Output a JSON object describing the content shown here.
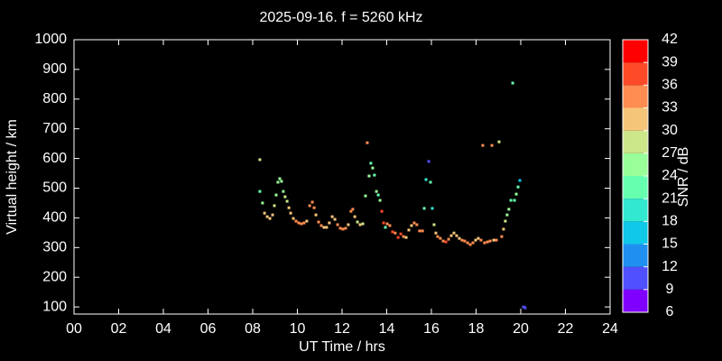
{
  "chart_data": {
    "type": "scatter",
    "title": "2025-09-16. f = 5260 kHz",
    "x_label": "UT Time / hrs",
    "y_label": "Virtual height / km",
    "colorbar_label": "SNR / dB",
    "xlim": [
      0,
      24
    ],
    "ylim": [
      76,
      1000
    ],
    "xticks": [
      {
        "value": 0,
        "label": "00"
      },
      {
        "value": 2,
        "label": "02"
      },
      {
        "value": 4,
        "label": "04"
      },
      {
        "value": 6,
        "label": "06"
      },
      {
        "value": 8,
        "label": "08"
      },
      10,
      12,
      14,
      16,
      18,
      20,
      22,
      24
    ],
    "yticks": [
      100,
      200,
      300,
      400,
      500,
      600,
      700,
      800,
      900,
      1000
    ],
    "colorbar_lim": [
      6,
      42
    ],
    "colorbar_ticks": [
      6,
      9,
      12,
      15,
      18,
      21,
      24,
      27,
      30,
      33,
      36,
      39,
      42
    ],
    "colors": [
      "#8000ff",
      "#5050ff",
      "#2090f0",
      "#10c8e8",
      "#33e8d0",
      "#66ffb0",
      "#99ff99",
      "#cce68a",
      "#f5c57a",
      "#ff8c50",
      "#ff4a28",
      "#ff0000"
    ],
    "x": [
      8.32,
      8.32,
      8.44,
      8.53,
      8.65,
      8.77,
      8.89,
      8.97,
      9.05,
      9.13,
      9.21,
      9.29,
      9.37,
      9.45,
      9.54,
      9.62,
      9.7,
      9.82,
      9.94,
      10.06,
      10.18,
      10.3,
      10.42,
      10.55,
      10.67,
      10.75,
      10.83,
      10.95,
      11.07,
      11.19,
      11.31,
      11.43,
      11.56,
      11.68,
      11.8,
      11.92,
      12.04,
      12.16,
      12.28,
      12.4,
      12.48,
      12.57,
      12.69,
      12.81,
      12.93,
      13.05,
      13.13,
      13.21,
      13.29,
      13.37,
      13.45,
      13.54,
      13.62,
      13.7,
      13.78,
      13.86,
      13.94,
      14.02,
      14.14,
      14.26,
      14.38,
      14.51,
      14.63,
      14.75,
      14.87,
      14.99,
      15.11,
      15.23,
      15.35,
      15.47,
      15.6,
      15.68,
      15.76,
      15.88,
      15.96,
      16.04,
      16.12,
      16.2,
      16.28,
      16.4,
      16.53,
      16.65,
      16.77,
      16.89,
      17.01,
      17.13,
      17.25,
      17.37,
      17.49,
      17.62,
      17.74,
      17.86,
      17.98,
      18.1,
      18.22,
      18.3,
      18.38,
      18.51,
      18.63,
      18.71,
      18.79,
      18.91,
      19.03,
      19.15,
      19.23,
      19.31,
      19.39,
      19.47,
      19.56,
      19.64,
      19.72,
      19.8,
      19.88,
      19.96,
      20.12,
      20.2
    ],
    "values": [
      596,
      489,
      450,
      416,
      404,
      398,
      410,
      441,
      477,
      520,
      532,
      523,
      489,
      471,
      456,
      434,
      416,
      398,
      389,
      383,
      380,
      383,
      389,
      441,
      453,
      434,
      410,
      386,
      374,
      368,
      368,
      383,
      404,
      395,
      377,
      365,
      362,
      365,
      377,
      422,
      429,
      404,
      386,
      377,
      380,
      474,
      653,
      541,
      584,
      568,
      544,
      489,
      477,
      459,
      422,
      383,
      368,
      380,
      374,
      353,
      349,
      334,
      346,
      337,
      334,
      359,
      374,
      383,
      377,
      356,
      356,
      432,
      529,
      590,
      520,
      432,
      377,
      349,
      337,
      331,
      322,
      319,
      328,
      340,
      349,
      340,
      331,
      325,
      322,
      316,
      310,
      316,
      325,
      331,
      325,
      644,
      316,
      319,
      322,
      644,
      325,
      325,
      656,
      337,
      362,
      389,
      410,
      429,
      459,
      854,
      459,
      480,
      504,
      526,
      100,
      97
    ],
    "snr": [
      28,
      22,
      24,
      30,
      31,
      31,
      30,
      29,
      25,
      25,
      24,
      26,
      25,
      27,
      29,
      30,
      31,
      32,
      34,
      34,
      33,
      33,
      30,
      34,
      34,
      33,
      31,
      33,
      33,
      32,
      31,
      30,
      31,
      31,
      33,
      34,
      34,
      33,
      31,
      35,
      33,
      30,
      28,
      30,
      28,
      25,
      35,
      24,
      22,
      24,
      23,
      24,
      23,
      26,
      37,
      36,
      23,
      35,
      34,
      36,
      35,
      38,
      36,
      35,
      32,
      31,
      32,
      35,
      34,
      33,
      35,
      22,
      20,
      10,
      22,
      20,
      29,
      31,
      33,
      34,
      35,
      36,
      35,
      32,
      30,
      30,
      32,
      33,
      34,
      34,
      35,
      33,
      32,
      31,
      33,
      35,
      33,
      34,
      33,
      34,
      32,
      33,
      27,
      33,
      32,
      29,
      26,
      24,
      22,
      22,
      22,
      24,
      21,
      17,
      10,
      11
    ]
  }
}
